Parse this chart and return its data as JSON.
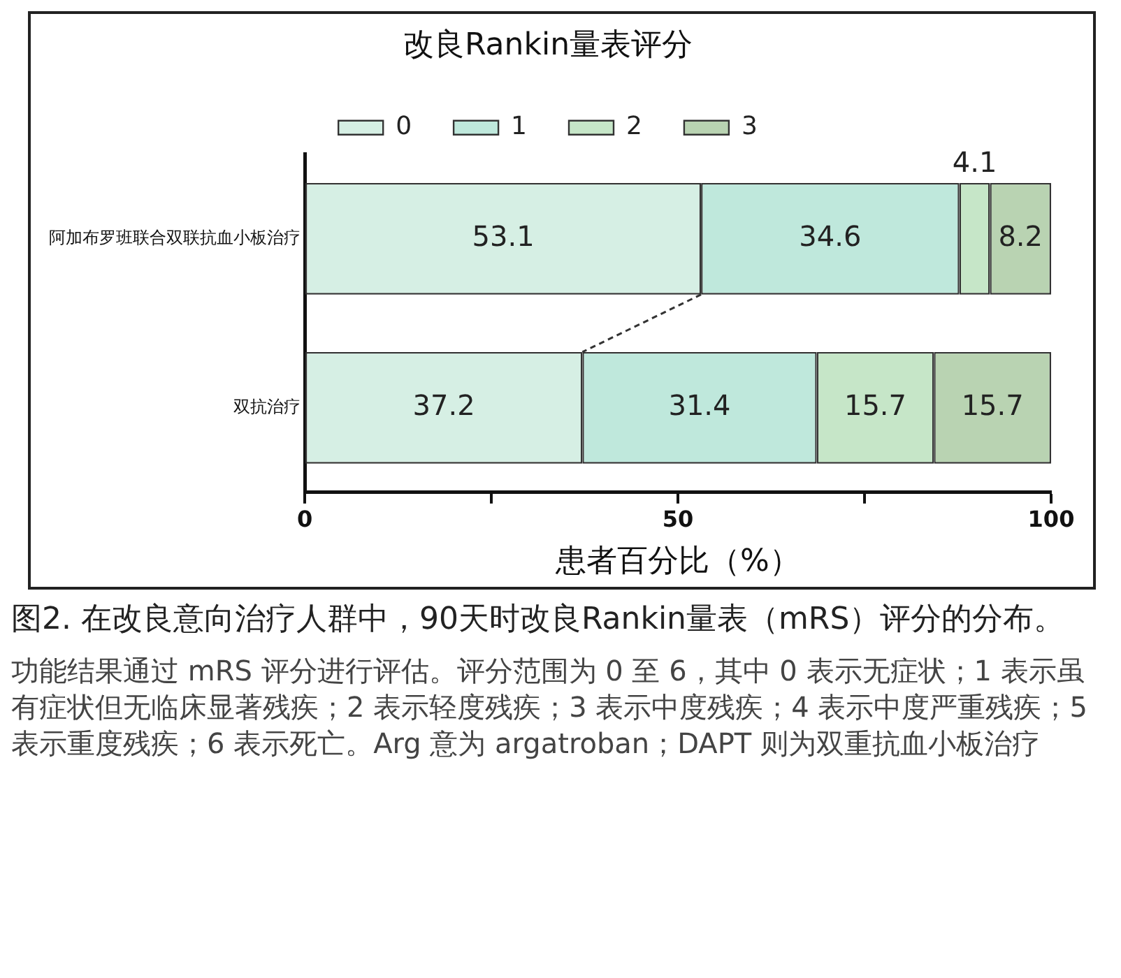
{
  "chart_data": {
    "type": "bar",
    "orientation": "horizontal",
    "stacked": true,
    "title": "改良Rankin量表评分",
    "categories": [
      "阿加布罗班联合双联抗血小板治疗",
      "双抗治疗"
    ],
    "series": [
      {
        "name": "0",
        "color": "#d6efe4",
        "values": [
          53.1,
          37.2
        ]
      },
      {
        "name": "1",
        "color": "#bfe8dc",
        "values": [
          34.6,
          31.4
        ]
      },
      {
        "name": "2",
        "color": "#c6e6c8",
        "values": [
          4.1,
          15.7
        ]
      },
      {
        "name": "3",
        "color": "#b9d3b2",
        "values": [
          8.2,
          15.7
        ]
      }
    ],
    "xlim": [
      0,
      100
    ],
    "xticks": [
      0,
      {
        "value": 25,
        "label": null
      },
      50,
      {
        "value": 75,
        "label": null
      },
      100
    ],
    "xlabel": "患者百分比（%）",
    "legend": "top",
    "grid": false,
    "data_labels": true,
    "annotations": [
      "图2. 在改良意向治疗人群中，90天时改良Rankin量表（mRS）评分的分布。",
      "功能结果通过 mRS 评分进行评估。评分范围为 0 至 6，其中 0 表示无症状；1 表示虽有症状但无临床显著残疾；2 表示轻度残疾；3 表示中度残疾；4 表示中度严重残疾；5 表示重度残疾；6 表示死亡。Arg 意为 argatroban；DAPT 则为双重抗血小板治疗"
    ]
  }
}
